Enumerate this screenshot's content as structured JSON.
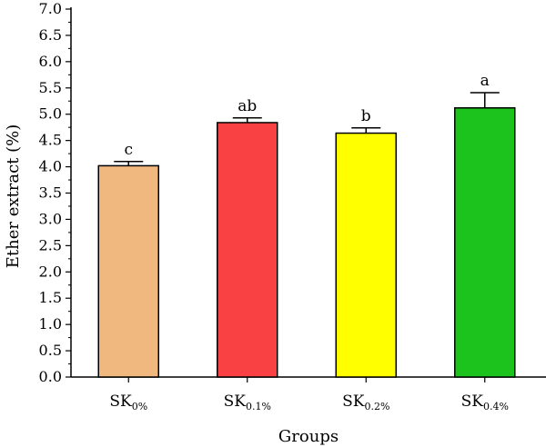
{
  "chart_data": {
    "type": "bar",
    "title": "",
    "xlabel": "Groups",
    "ylabel": "Ether extract (%)",
    "ylim": [
      0,
      7
    ],
    "yticks": [
      "0.0",
      "0.5",
      "1.0",
      "1.5",
      "2.0",
      "2.5",
      "3.0",
      "3.5",
      "4.0",
      "4.5",
      "5.0",
      "5.5",
      "6.0",
      "6.5",
      "7.0"
    ],
    "categories": [
      {
        "main": "SK",
        "sub": "0%"
      },
      {
        "main": "SK",
        "sub": "0.1%"
      },
      {
        "main": "SK",
        "sub": "0.2%"
      },
      {
        "main": "SK",
        "sub": "0.4%"
      }
    ],
    "values": [
      4.02,
      4.84,
      4.64,
      5.12
    ],
    "errors": [
      0.08,
      0.09,
      0.1,
      0.29
    ],
    "significance": [
      "c",
      "ab",
      "b",
      "a"
    ],
    "colors": [
      "#f0b87e",
      "#f94143",
      "#ffff00",
      "#1dc31d"
    ],
    "grid": false,
    "legend": "none"
  }
}
